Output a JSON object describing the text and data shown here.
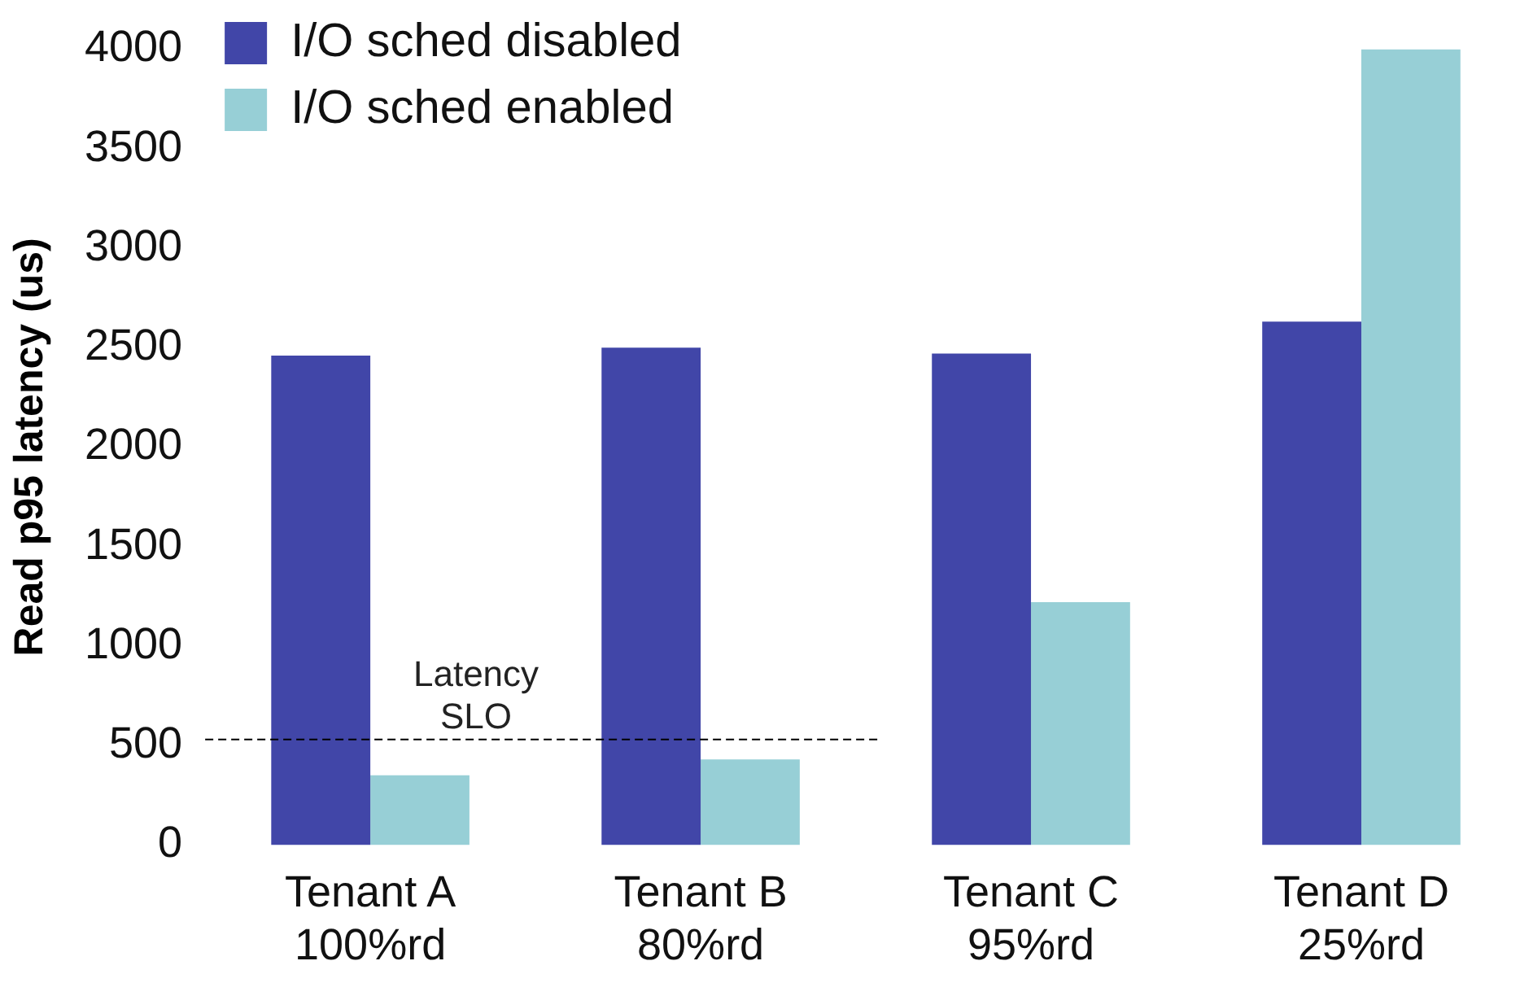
{
  "chart_data": {
    "type": "bar",
    "categories": [
      "Tenant A\n100%rd",
      "Tenant B\n80%rd",
      "Tenant C\n95%rd",
      "Tenant D\n25%rd"
    ],
    "series": [
      {
        "name": "I/O sched disabled",
        "color": "#4146a8",
        "values": [
          2460,
          2500,
          2470,
          2630
        ]
      },
      {
        "name": "I/O sched enabled",
        "color": "#97cfd6",
        "values": [
          350,
          430,
          1220,
          4000
        ]
      }
    ],
    "ylabel": "Read p95 latency (us)",
    "ylim": [
      0,
      4000
    ],
    "yticks": [
      0,
      500,
      1000,
      1500,
      2000,
      2500,
      3000,
      3500,
      4000
    ],
    "ref_lines": [
      {
        "axis": "y",
        "value": 530,
        "label": "Latency SLO",
        "line_style": "dashed",
        "color": "#000000"
      }
    ],
    "grid": false,
    "legend": "top left"
  }
}
